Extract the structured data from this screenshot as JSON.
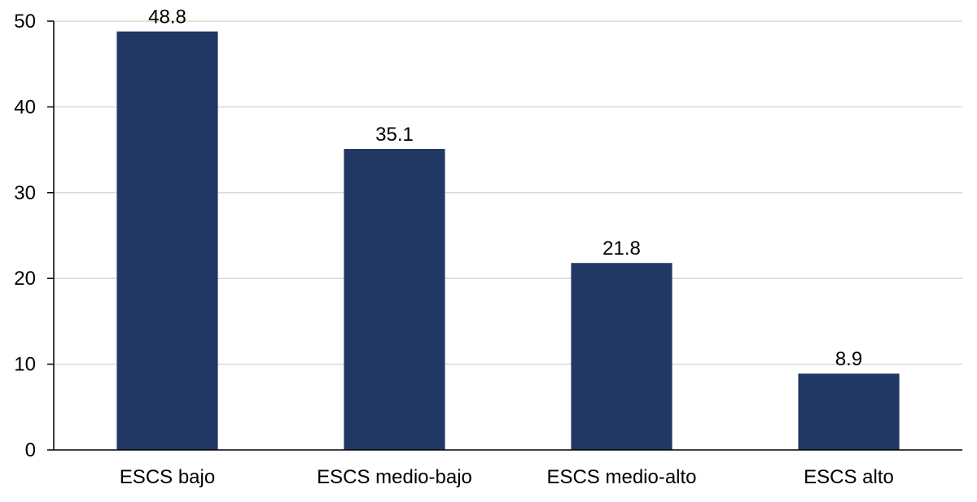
{
  "chart_data": {
    "type": "bar",
    "categories": [
      "ESCS bajo",
      "ESCS medio-bajo",
      "ESCS medio-alto",
      "ESCS alto"
    ],
    "values": [
      48.8,
      35.1,
      21.8,
      8.9
    ],
    "data_labels": [
      "48.8",
      "35.1",
      "21.8",
      "8.9"
    ],
    "title": "",
    "xlabel": "",
    "ylabel": "",
    "ylim": [
      0,
      50
    ],
    "yticks": [
      0,
      10,
      20,
      30,
      40,
      50
    ],
    "grid": true,
    "legend": "none",
    "bar_color": "#213865",
    "grid_color": "#d9d9d9",
    "axis_color": "#000000"
  }
}
